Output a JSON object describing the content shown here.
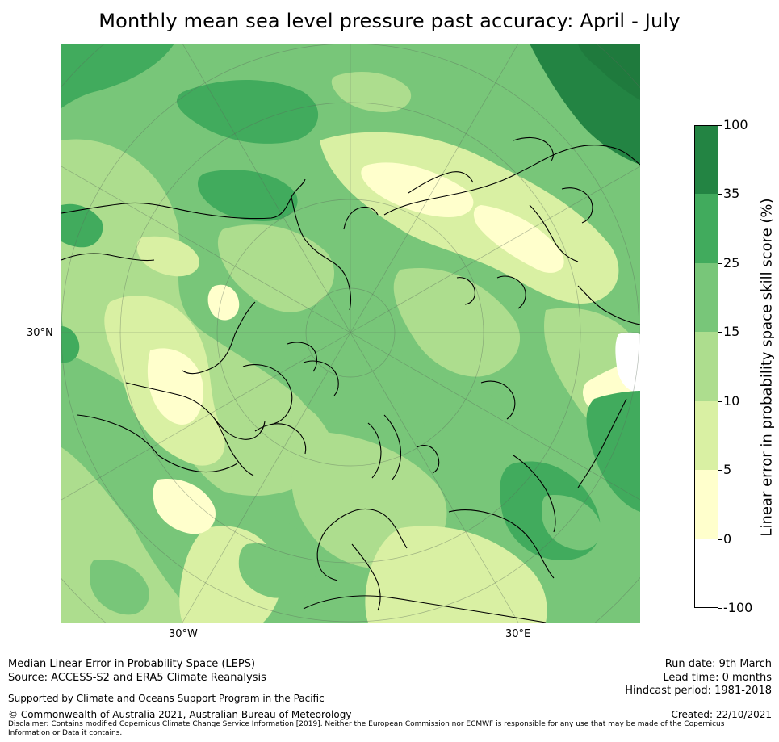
{
  "title": "Monthly mean sea level pressure past accuracy: April - July",
  "map": {
    "projection": "north-polar-stereographic",
    "lon_labels": [
      "30°W",
      "30°E"
    ],
    "lat_labels": [
      "30°N"
    ]
  },
  "colorbar": {
    "label": "Linear error in probability space skill score (%)",
    "bins": [
      {
        "from": "-100",
        "to": "0",
        "color": "#ffffff"
      },
      {
        "from": "0",
        "to": "5",
        "color": "#ffffcc"
      },
      {
        "from": "5",
        "to": "10",
        "color": "#d9f0a3"
      },
      {
        "from": "10",
        "to": "15",
        "color": "#addd8e"
      },
      {
        "from": "15",
        "to": "25",
        "color": "#78c679"
      },
      {
        "from": "25",
        "to": "35",
        "color": "#41ab5d"
      },
      {
        "from": "35",
        "to": "100",
        "color": "#238443"
      }
    ],
    "tick_labels": [
      "-100",
      "0",
      "5",
      "10",
      "15",
      "25",
      "35",
      "100"
    ]
  },
  "footer": {
    "left1": "Median Linear Error in Probability Space (LEPS)",
    "left2": "Source: ACCESS-S2 and ERA5 Climate Reanalysis",
    "support": "Supported by Climate and Oceans Support Program in the Pacific",
    "copyright": "© Commonwealth of Australia 2021, Australian Bureau of Meteorology",
    "disclaimer": "Disclaimer: Contains modified Copernicus Climate Change Service Information [2019]. Neither the European Commission nor ECMWF is responsible for any use that may be made of the Copernicus Information or Data it contains.",
    "run_date": "Run date: 9th March",
    "lead_time": "Lead time: 0 months",
    "hindcast": "Hindcast period: 1981-2018",
    "created": "Created: 22/10/2021"
  }
}
